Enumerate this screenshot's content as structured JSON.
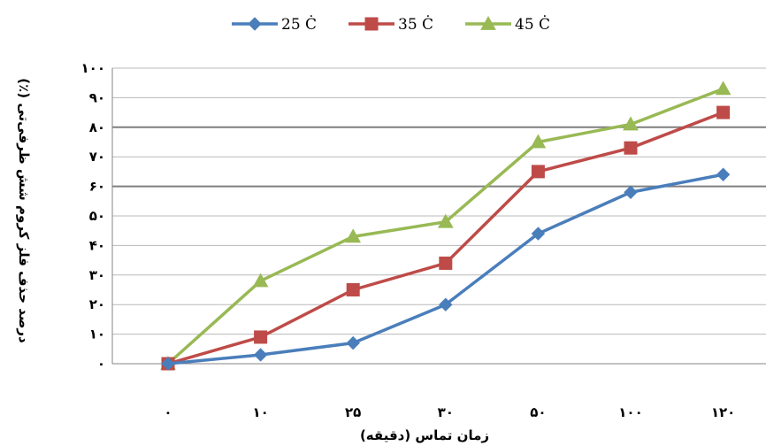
{
  "chart_data": {
    "type": "line",
    "xlabel": "زمان تماس (دقیقه)",
    "ylabel": "درصد حذف فلز کروم شش ظرفی‌تی (٪)",
    "categories": [
      "۰",
      "۱۰",
      "۲۵",
      "۳۰",
      "۵۰",
      "۱۰۰",
      "۱۲۰"
    ],
    "y_ticks": [
      "۰",
      "۱۰",
      "۲۰",
      "۳۰",
      "۴۰",
      "۵۰",
      "۶۰",
      "۷۰",
      "۸۰",
      "۹۰",
      "۱۰۰"
    ],
    "ylim": [
      0,
      100
    ],
    "legend_position": "top",
    "grid": "horizontal",
    "series": [
      {
        "name": "25 Ċ",
        "color": "#4a7ebb",
        "marker": "diamond",
        "values": [
          0,
          3,
          7,
          20,
          44,
          58,
          64
        ]
      },
      {
        "name": "35 Ċ",
        "color": "#be4b48",
        "marker": "square",
        "values": [
          0,
          9,
          25,
          34,
          65,
          73,
          85
        ]
      },
      {
        "name": "45 Ċ",
        "color": "#98b954",
        "marker": "triangle",
        "values": [
          0,
          28,
          43,
          48,
          75,
          81,
          93
        ]
      }
    ]
  }
}
